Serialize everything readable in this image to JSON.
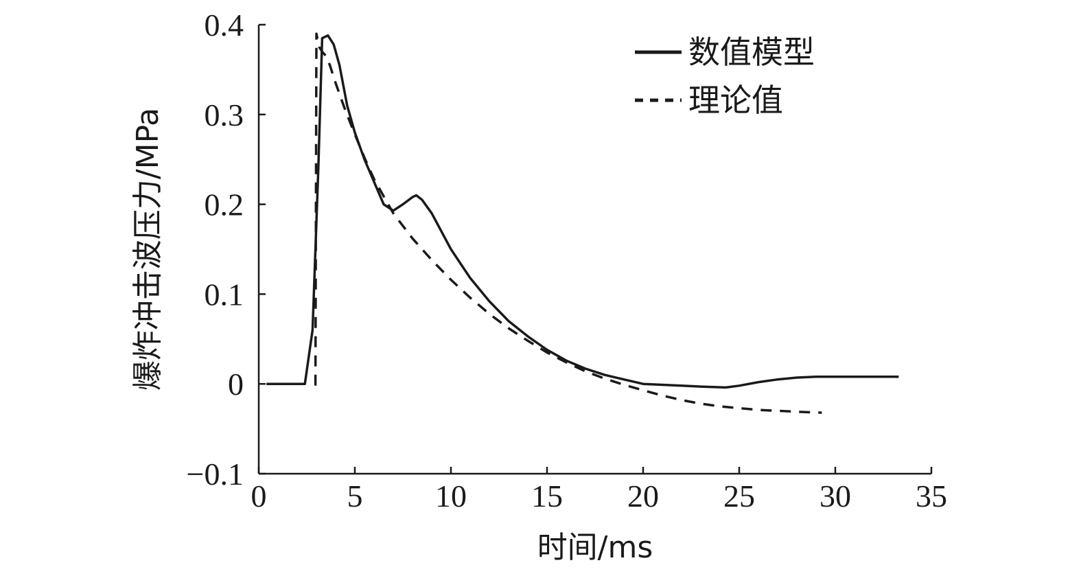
{
  "chart_data": {
    "type": "line",
    "xlabel": "时间/ms",
    "ylabel": "爆炸冲击波压力/MPa",
    "xlim": [
      0,
      35
    ],
    "ylim": [
      -0.1,
      0.4
    ],
    "x_ticks": [
      "0",
      "5",
      "10",
      "15",
      "20",
      "25",
      "30",
      "35"
    ],
    "y_ticks": [
      "−0.1",
      "0",
      "0.1",
      "0.2",
      "0.3",
      "0.4"
    ],
    "grid": false,
    "legend_position": "top-right",
    "series": [
      {
        "name": "数值模型",
        "style": "solid",
        "color": "#1a1a1a",
        "x": [
          0.4,
          2.4,
          2.8,
          3.1,
          3.3,
          3.6,
          3.9,
          4.2,
          4.6,
          5.0,
          5.5,
          6.0,
          6.5,
          7.0,
          7.5,
          8.0,
          8.2,
          8.5,
          9.0,
          9.5,
          10.0,
          11.0,
          12.0,
          13.0,
          14.0,
          15.0,
          16.0,
          17.0,
          18.0,
          19.0,
          20.0,
          21.0,
          22.0,
          23.0,
          24.3,
          25.0,
          26.0,
          27.0,
          28.0,
          29.0,
          30.0,
          31.0,
          32.0,
          33.3
        ],
        "y": [
          0.0,
          0.0,
          0.06,
          0.24,
          0.385,
          0.388,
          0.378,
          0.355,
          0.31,
          0.28,
          0.25,
          0.225,
          0.2,
          0.193,
          0.2,
          0.208,
          0.21,
          0.205,
          0.19,
          0.17,
          0.15,
          0.118,
          0.092,
          0.07,
          0.053,
          0.038,
          0.026,
          0.017,
          0.01,
          0.005,
          0.0,
          -0.001,
          -0.002,
          -0.003,
          -0.004,
          -0.002,
          0.002,
          0.005,
          0.007,
          0.008,
          0.008,
          0.008,
          0.008,
          0.008
        ]
      },
      {
        "name": "理论值",
        "style": "dashed",
        "color": "#1a1a1a",
        "x": [
          2.95,
          3.0,
          3.15,
          3.3,
          3.5,
          3.7,
          4.0,
          4.5,
          5.0,
          5.5,
          6.0,
          7.0,
          8.0,
          9.0,
          10.0,
          11.0,
          12.0,
          13.0,
          14.0,
          15.0,
          16.0,
          17.0,
          18.0,
          19.0,
          20.0,
          21.0,
          22.0,
          23.0,
          24.0,
          25.0,
          26.0,
          27.0,
          28.0,
          29.3
        ],
        "y": [
          -0.002,
          0.39,
          0.375,
          0.37,
          0.365,
          0.355,
          0.335,
          0.305,
          0.278,
          0.252,
          0.228,
          0.19,
          0.162,
          0.138,
          0.116,
          0.096,
          0.078,
          0.062,
          0.048,
          0.035,
          0.024,
          0.014,
          0.006,
          -0.001,
          -0.007,
          -0.013,
          -0.018,
          -0.022,
          -0.025,
          -0.027,
          -0.029,
          -0.03,
          -0.031,
          -0.032
        ]
      }
    ]
  }
}
